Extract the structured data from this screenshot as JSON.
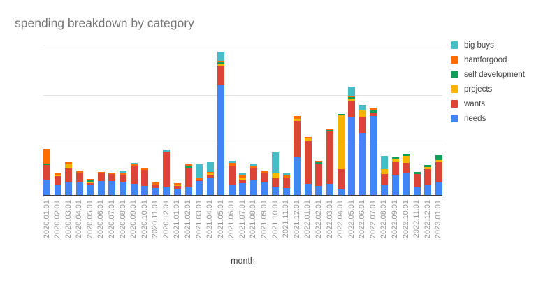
{
  "title": "spending breakdown by category",
  "x_axis_title": "month",
  "legend": {
    "position": "right",
    "items": [
      {
        "label": "big buys",
        "color": "#46BDC6"
      },
      {
        "label": "hamforgood",
        "color": "#FF6D01"
      },
      {
        "label": "self development",
        "color": "#0F9D58"
      },
      {
        "label": "projects",
        "color": "#F4B400"
      },
      {
        "label": "wants",
        "color": "#DB4437"
      },
      {
        "label": "needs",
        "color": "#4285F4"
      }
    ]
  },
  "chart_data": {
    "type": "bar",
    "stacked": true,
    "title": "spending breakdown by category",
    "xlabel": "month",
    "ylabel": "",
    "y_axis_labels_visible": false,
    "ylim": [
      0,
      1500
    ],
    "gridlines": [
      0,
      500,
      1000,
      1500
    ],
    "grid_on": true,
    "legend_position": "right",
    "legend_order_top_to_bottom": [
      "big buys",
      "hamforgood",
      "self development",
      "projects",
      "wants",
      "needs"
    ],
    "stack_order_bottom_to_top": [
      "needs",
      "wants",
      "projects",
      "self development",
      "hamforgood",
      "big buys"
    ],
    "categories": [
      "2020.01.01",
      "2020.02.01",
      "2020.03.01",
      "2020.04.01",
      "2020.05.01",
      "2020.06.01",
      "2020.07.01",
      "2020.08.01",
      "2020.09.01",
      "2020.10.01",
      "2020.11.01",
      "2020.12.01",
      "2021.01.01",
      "2021.02.01",
      "2021.03.01",
      "2021.04.01",
      "2021.05.01",
      "2021.06.01",
      "2021.07.01",
      "2021.08.01",
      "2021.09.01",
      "2021.10.01",
      "2021.11.01",
      "2021.12.01",
      "2022.01.01",
      "2022.02.01",
      "2022.03.01",
      "2022.04.01",
      "2022.05.01",
      "2022.06.01",
      "2022.07.01",
      "2022.08.01",
      "2022.09.01",
      "2022.10.01",
      "2022.11.01",
      "2022.12.01",
      "2023.01.01"
    ],
    "series": [
      {
        "name": "needs",
        "color": "#4285F4",
        "values": [
          160,
          105,
          135,
          140,
          115,
          145,
          145,
          140,
          120,
          100,
          80,
          85,
          70,
          92,
          145,
          180,
          1105,
          112,
          126,
          155,
          135,
          82,
          75,
          385,
          118,
          95,
          122,
          65,
          790,
          630,
          798,
          108,
          200,
          229,
          84,
          112,
          133
        ]
      },
      {
        "name": "wants",
        "color": "#DB4437",
        "values": [
          145,
          90,
          140,
          90,
          12,
          75,
          70,
          72,
          175,
          160,
          30,
          355,
          28,
          188,
          18,
          28,
          196,
          190,
          35,
          120,
          88,
          93,
          100,
          364,
          427,
          220,
          518,
          203,
          160,
          161,
          28,
          105,
          136,
          102,
          133,
          151,
          203
        ]
      },
      {
        "name": "projects",
        "color": "#F4B400",
        "values": [
          0,
          15,
          40,
          0,
          10,
          0,
          0,
          0,
          0,
          0,
          0,
          0,
          14,
          0,
          0,
          14,
          14,
          0,
          23,
          0,
          0,
          58,
          0,
          21,
          28,
          0,
          0,
          532,
          17,
          66,
          0,
          52,
          31,
          66,
          0,
          23,
          18
        ]
      },
      {
        "name": "self development",
        "color": "#0F9D58",
        "values": [
          15,
          0,
          0,
          0,
          14,
          0,
          0,
          0,
          0,
          0,
          0,
          0,
          0,
          14,
          0,
          0,
          17,
          0,
          0,
          0,
          0,
          0,
          10,
          0,
          0,
          17,
          14,
          14,
          17,
          0,
          23,
          0,
          17,
          21,
          18,
          23,
          51
        ]
      },
      {
        "name": "hamforgood",
        "color": "#FF6D01",
        "values": [
          150,
          15,
          20,
          20,
          14,
          15,
          15,
          17,
          17,
          17,
          22,
          0,
          14,
          18,
          14,
          14,
          14,
          23,
          23,
          23,
          21,
          0,
          23,
          24,
          14,
          19,
          14,
          0,
          17,
          0,
          21,
          0,
          0,
          0,
          0,
          0,
          0
        ]
      },
      {
        "name": "big buys",
        "color": "#46BDC6",
        "values": [
          0,
          0,
          0,
          0,
          0,
          0,
          0,
          21,
          14,
          0,
          0,
          18,
          0,
          10,
          135,
          98,
          90,
          23,
          14,
          23,
          10,
          198,
          19,
          0,
          0,
          0,
          0,
          0,
          89,
          49,
          0,
          131,
          0,
          0,
          0,
          0,
          0
        ]
      }
    ]
  }
}
